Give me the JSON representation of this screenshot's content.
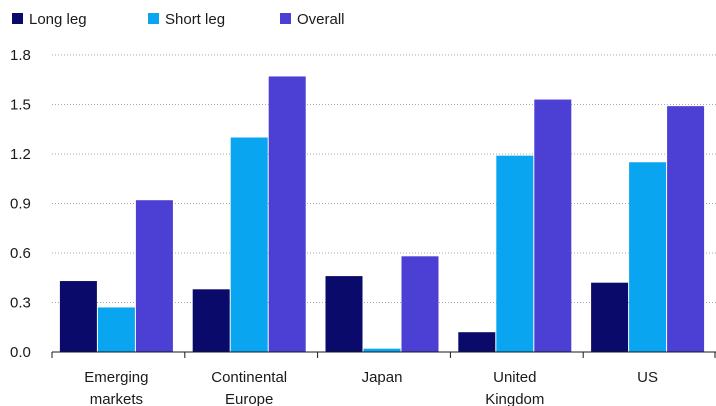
{
  "chart_data": {
    "type": "bar",
    "categories": [
      [
        "Emerging",
        "markets"
      ],
      [
        "Continental",
        "Europe"
      ],
      [
        "Japan"
      ],
      [
        "United",
        "Kingdom"
      ],
      [
        "US"
      ]
    ],
    "series": [
      {
        "name": "Long leg",
        "color": "#0a0a6b",
        "values": [
          0.43,
          0.38,
          0.46,
          0.12,
          0.42
        ]
      },
      {
        "name": "Short leg",
        "color": "#0aa5f0",
        "values": [
          0.27,
          1.3,
          0.02,
          1.19,
          1.15
        ]
      },
      {
        "name": "Overall",
        "color": "#4b3fd4",
        "values": [
          0.92,
          1.67,
          0.58,
          1.53,
          1.49
        ]
      }
    ],
    "ylim": [
      0,
      1.8
    ],
    "yticks": [
      "0.0",
      "0.3",
      "0.6",
      "0.9",
      "1.2",
      "1.5",
      "1.8"
    ],
    "grid": true,
    "legend": "top-left"
  }
}
